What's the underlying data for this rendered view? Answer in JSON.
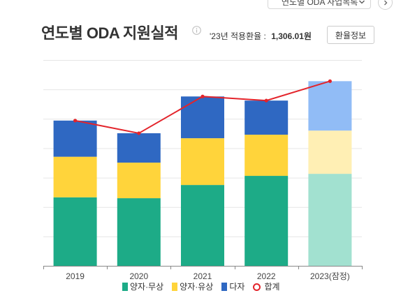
{
  "header": {
    "dropdown_label": "연도별 ODA 사업목록",
    "rate_label": "'23년 적용환율 :",
    "rate_value": "1,306.01원",
    "rate_button": "환율정보"
  },
  "icons": {
    "dropdown": "chevron-down-icon",
    "next": "chevron-right-icon",
    "info": "info-icon"
  },
  "chart_data": {
    "type": "bar",
    "stacked": true,
    "title": "연도별 ODA 지원실적",
    "categories": [
      "2019",
      "2020",
      "2021",
      "2022",
      "2023(잠정)"
    ],
    "provisional_index": 4,
    "series": [
      {
        "name": "양자·무상",
        "color": "#1dab87",
        "provisional_color": "#a2e1d0",
        "values": [
          2.33,
          2.3,
          2.75,
          3.06,
          3.13
        ]
      },
      {
        "name": "양자·유상",
        "color": "#ffd43b",
        "provisional_color": "#ffefb4",
        "values": [
          1.38,
          1.21,
          1.59,
          1.4,
          1.47
        ]
      },
      {
        "name": "다자",
        "color": "#2f68c2",
        "provisional_color": "#91bcf6",
        "values": [
          1.23,
          1.0,
          1.42,
          1.16,
          1.68
        ]
      },
      {
        "name": "합계",
        "type": "line",
        "color": "#e3242b",
        "values": [
          4.94,
          4.51,
          5.76,
          5.62,
          6.28
        ]
      }
    ],
    "ylim": [
      0,
      7
    ],
    "grid": true,
    "legend_position": "bottom"
  }
}
